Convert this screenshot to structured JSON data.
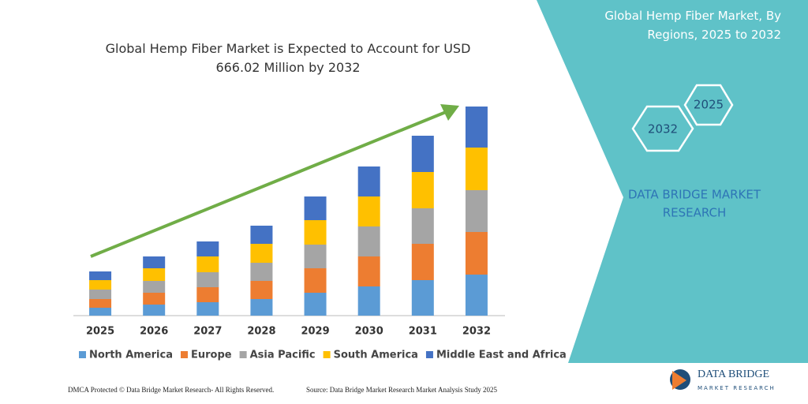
{
  "chart_data": {
    "type": "stacked_bar",
    "title": "Global Hemp Fiber Market is Expected to Account for USD 666.02 Million by 2032",
    "categories": [
      "2025",
      "2026",
      "2027",
      "2028",
      "2029",
      "2030",
      "2031",
      "2032"
    ],
    "series": [
      {
        "name": "North America",
        "color": "#5b9bd5",
        "values": [
          10,
          14,
          17,
          21,
          29,
          37,
          45,
          52
        ]
      },
      {
        "name": "Europe",
        "color": "#ed7d31",
        "values": [
          11,
          15,
          19,
          23,
          31,
          38,
          46,
          54
        ]
      },
      {
        "name": "Asia Pacific",
        "color": "#a5a5a5",
        "values": [
          12,
          15,
          19,
          23,
          30,
          38,
          45,
          53
        ]
      },
      {
        "name": "South America",
        "color": "#ffc000",
        "values": [
          12,
          16,
          20,
          24,
          31,
          38,
          46,
          54
        ]
      },
      {
        "name": "Middle East and Africa",
        "color": "#4472c4",
        "values": [
          11,
          15,
          19,
          23,
          30,
          38,
          46,
          52
        ]
      }
    ],
    "ylim": [
      0,
      270
    ],
    "legend": "bottom"
  },
  "panel": {
    "title": "Global Hemp Fiber Market, By Regions, 2025 to 2032",
    "hexagons": [
      "2025",
      "2032"
    ],
    "brand_lines": [
      "DATA BRIDGE MARKET",
      "RESEARCH"
    ]
  },
  "footer": {
    "left": "DMCA Protected © Data Bridge Market Research- All Rights Reserved.",
    "right": "Source: Data Bridge Market Research Market Analysis Study 2025"
  },
  "logo": {
    "name": "DATA BRIDGE",
    "tagline": "MARKET RESEARCH"
  }
}
